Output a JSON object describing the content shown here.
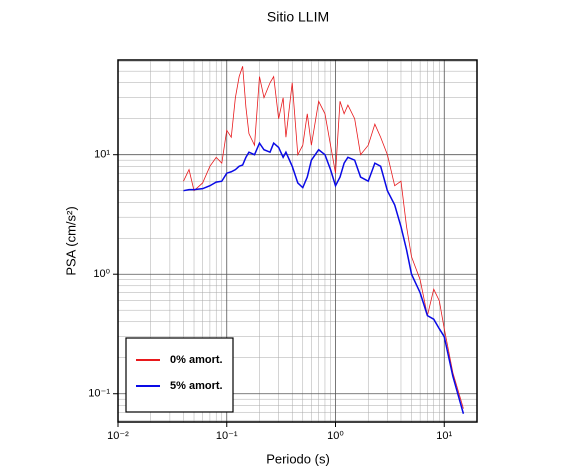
{
  "chart_data": {
    "type": "line",
    "title": "Sitio LLIM",
    "xlabel": "Periodo (s)",
    "ylabel": "PSA (cm/s²)",
    "xscale": "log",
    "yscale": "log",
    "grid": true,
    "legend": "lower left",
    "xlim": [
      0.01,
      20
    ],
    "ylim": [
      0.058,
      62
    ],
    "xticks": [
      {
        "value": 0.01,
        "label": "10⁻²"
      },
      {
        "value": 0.1,
        "label": "10⁻¹"
      },
      {
        "value": 1,
        "label": "10⁰"
      },
      {
        "value": 10,
        "label": "10¹"
      }
    ],
    "yticks": [
      {
        "value": 0.1,
        "label": "10⁻¹"
      },
      {
        "value": 1,
        "label": "10⁰"
      },
      {
        "value": 10,
        "label": "10¹"
      }
    ],
    "x": [
      0.04,
      0.045,
      0.05,
      0.06,
      0.07,
      0.08,
      0.09,
      0.1,
      0.11,
      0.12,
      0.13,
      0.14,
      0.15,
      0.16,
      0.18,
      0.2,
      0.22,
      0.25,
      0.27,
      0.3,
      0.33,
      0.35,
      0.4,
      0.45,
      0.5,
      0.55,
      0.6,
      0.7,
      0.8,
      0.9,
      1.0,
      1.1,
      1.2,
      1.3,
      1.5,
      1.7,
      2.0,
      2.3,
      2.6,
      3.0,
      3.5,
      4.0,
      4.5,
      5.0,
      6.0,
      7.0,
      8.0,
      9.0,
      10.0,
      12.0,
      15.0
    ],
    "series": [
      {
        "name": "0% amort.",
        "color": "#e8191c",
        "width": 0.8,
        "values": [
          6.0,
          7.5,
          5.0,
          5.8,
          8.0,
          9.5,
          8.5,
          16,
          14,
          30,
          45,
          55,
          25,
          15,
          12,
          45,
          30,
          40,
          45,
          20,
          30,
          14,
          40,
          10,
          12,
          22,
          12,
          28,
          22,
          12,
          7,
          28,
          22,
          26,
          20,
          10,
          12,
          18,
          14,
          10,
          5.5,
          6.0,
          2.5,
          1.4,
          0.9,
          0.45,
          0.75,
          0.6,
          0.35,
          0.15,
          0.075
        ]
      },
      {
        "name": "5% amort.",
        "color": "#0a0ae6",
        "width": 1.5,
        "values": [
          5.0,
          5.1,
          5.1,
          5.2,
          5.5,
          5.9,
          6.0,
          7.0,
          7.2,
          7.5,
          8.0,
          8.2,
          9.5,
          10.5,
          10.0,
          12.5,
          11.0,
          10.5,
          12.5,
          11.5,
          9.5,
          10.5,
          8.0,
          5.8,
          5.3,
          6.5,
          9.0,
          11.0,
          10.0,
          7.5,
          5.5,
          6.5,
          8.5,
          9.5,
          9.0,
          6.5,
          6.0,
          8.5,
          8.0,
          5.0,
          3.8,
          2.5,
          1.6,
          1.0,
          0.7,
          0.45,
          0.42,
          0.35,
          0.3,
          0.14,
          0.068
        ]
      }
    ]
  }
}
